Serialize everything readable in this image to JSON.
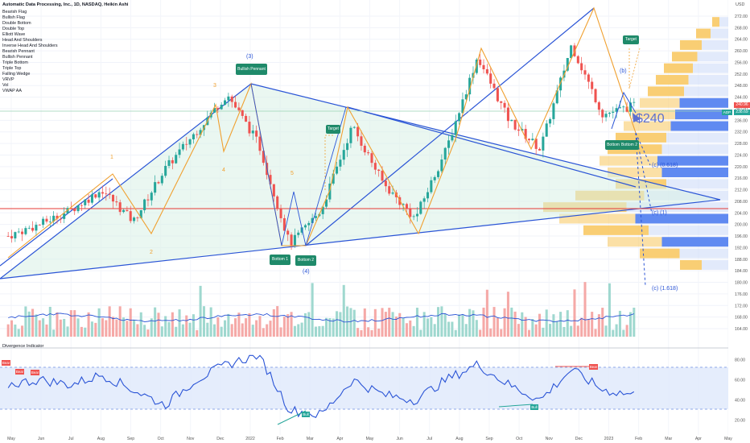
{
  "header": {
    "title": "Automatic Data Processing, Inc., 1D, NASDAQ, Heikin Ashi",
    "currency": "USD"
  },
  "indicators_list": [
    "Bearish Flag",
    "Bullish Flag",
    "Double Bottom",
    "Double Top",
    "Elliott Wave",
    "Head And Shoulders",
    "Inverse Head And Shoulders",
    "Bearish Pennant",
    "Bullish Pennant",
    "Triple Bottom",
    "Triple Top",
    "Falling Wedge",
    "VRVP",
    "Vol",
    "VWAP AA"
  ],
  "price_axis": {
    "ticks": [
      "272.00",
      "268.00",
      "264.00",
      "260.00",
      "256.00",
      "252.00",
      "248.00",
      "244.00",
      "240.00",
      "236.00",
      "232.00",
      "228.00",
      "224.00",
      "220.00",
      "216.00",
      "212.00",
      "208.00",
      "204.00",
      "200.00",
      "196.00",
      "192.00",
      "188.00",
      "184.00",
      "180.00",
      "176.00",
      "172.00",
      "168.00",
      "164.00"
    ],
    "current_price_label": "240.96",
    "symbol_label": "ADP",
    "symbol_price": "238.69"
  },
  "time_axis": {
    "labels": [
      "May",
      "Jun",
      "Jul",
      "Aug",
      "Sep",
      "Oct",
      "Nov",
      "Dec",
      "2022",
      "Feb",
      "Mar",
      "Apr",
      "May",
      "Jun",
      "Jul",
      "Aug",
      "Sep",
      "Oct",
      "Nov",
      "Dec",
      "2023",
      "Feb",
      "Mar",
      "Apr",
      "May"
    ]
  },
  "annotations": {
    "price_call": "$240",
    "wave_labels": [
      "1",
      "2",
      "3",
      "4",
      "5",
      "(3)",
      "(4)",
      "(b)"
    ],
    "c_618": "(c) (0.618)",
    "c_1": "(c) (1)",
    "c_1618": "(c) (1.618)",
    "badges": {
      "bullish_pennant": "Bullish Pennant",
      "bottom1": "Bottom 1",
      "bottom2": "Bottom 2",
      "target1": "Target",
      "target2": "Target",
      "bottom_right_a": "Bottom",
      "bottom_right_b": "Bottom 2"
    }
  },
  "osc": {
    "title": "Divergence Indicator",
    "ticks": [
      "80.00",
      "60.00",
      "40.00",
      "20.00"
    ],
    "bear_label": "Bear",
    "bull_label": "Bull"
  },
  "chart_data": {
    "type": "line",
    "title": "Automatic Data Processing, Inc., 1D, NASDAQ, Heikin Ashi",
    "x": [
      "2021-05",
      "2021-06",
      "2021-07",
      "2021-08",
      "2021-09",
      "2021-10",
      "2021-11",
      "2021-12",
      "2022-01",
      "2022-02",
      "2022-03",
      "2022-04",
      "2022-05",
      "2022-06",
      "2022-07",
      "2022-08",
      "2022-09",
      "2022-10",
      "2022-11",
      "2022-12",
      "2023-01"
    ],
    "series": [
      {
        "values": [
          196,
          200,
          205,
          212,
          201,
          219,
          232,
          245,
          228,
          193,
          205,
          234,
          214,
          202,
          226,
          258,
          236,
          226,
          262,
          238,
          241
        ]
      }
    ],
    "ylim": [
      162,
      274
    ],
    "current_price": 240.96,
    "oscillator": {
      "values": [
        55,
        60,
        55,
        65,
        50,
        35,
        60,
        75,
        85,
        30,
        25,
        60,
        45,
        40,
        60,
        75,
        55,
        40,
        70,
        50,
        45
      ],
      "ylim": [
        15,
        85
      ],
      "band": [
        30,
        70
      ]
    },
    "colors": {
      "up": "#26a69a",
      "down": "#ef5350",
      "pattern_fill": "#d8f0e6",
      "trend": "#2a54d6",
      "orange": "#f0a030",
      "vp_blue": "#4f7df0",
      "vp_orange": "#f8c65c"
    }
  }
}
